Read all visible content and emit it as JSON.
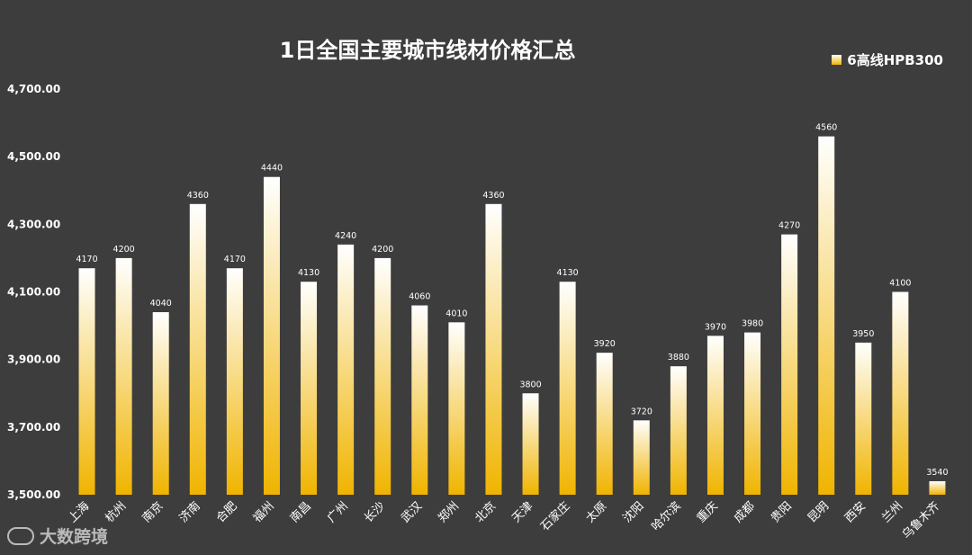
{
  "chart_data": {
    "type": "bar",
    "title": "1日全国主要城市线材价格汇总",
    "legend": "6高线HPB300",
    "legend_position": "top-right",
    "categories": [
      "上海",
      "杭州",
      "南京",
      "济南",
      "合肥",
      "福州",
      "南昌",
      "广州",
      "长沙",
      "武汉",
      "郑州",
      "北京",
      "天津",
      "石家庄",
      "太原",
      "沈阳",
      "哈尔滨",
      "重庆",
      "成都",
      "贵阳",
      "昆明",
      "西安",
      "兰州",
      "乌鲁木齐"
    ],
    "values": [
      4170,
      4200,
      4040,
      4360,
      4170,
      4440,
      4130,
      4240,
      4200,
      4060,
      4010,
      4360,
      3800,
      4130,
      3920,
      3720,
      3880,
      3970,
      3980,
      4270,
      4560,
      3950,
      4100,
      3540
    ],
    "yticks": [
      "3,500.00",
      "3,700.00",
      "3,900.00",
      "4,100.00",
      "4,300.00",
      "4,500.00",
      "4,700.00"
    ],
    "ylim": [
      3500,
      4700
    ],
    "grid": false,
    "colors": {
      "bar_top": "#ffffff",
      "bar_bottom": "#f0b400",
      "background": "#3d3d3d"
    }
  },
  "watermark": "大数跨境",
  "watermark_logo": "watermark-logo-icon"
}
